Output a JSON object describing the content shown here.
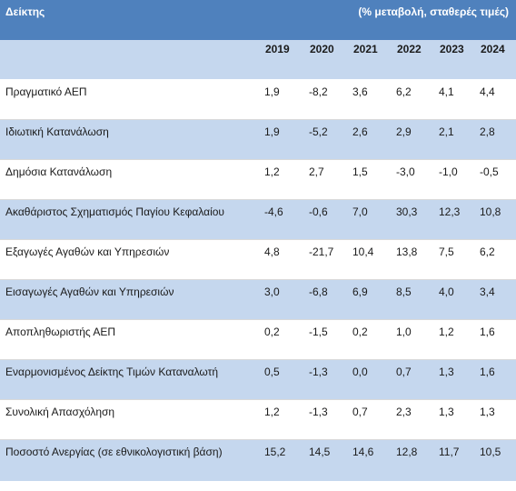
{
  "header": {
    "title": "Δείκτης",
    "unit": "(% μεταβολή, σταθερές τιμές)"
  },
  "years": [
    "2019",
    "2020",
    "2021",
    "2022",
    "2023",
    "2024"
  ],
  "rows": [
    {
      "label": "Πραγματικό ΑΕΠ",
      "values": [
        "1,9",
        "-8,2",
        "3,6",
        "6,2",
        "4,1",
        "4,4"
      ]
    },
    {
      "label": "Ιδιωτική Κατανάλωση",
      "values": [
        "1,9",
        "-5,2",
        "2,6",
        "2,9",
        "2,1",
        "2,8"
      ]
    },
    {
      "label": "Δημόσια Κατανάλωση",
      "values": [
        "1,2",
        "2,7",
        "1,5",
        "-3,0",
        "-1,0",
        "-0,5"
      ]
    },
    {
      "label": "Ακαθάριστος Σχηματισμός Παγίου Κεφαλαίου",
      "values": [
        "-4,6",
        "-0,6",
        "7,0",
        "30,3",
        "12,3",
        "10,8"
      ]
    },
    {
      "label": "Εξαγωγές Αγαθών και Υπηρεσιών",
      "values": [
        "4,8",
        "-21,7",
        "10,4",
        "13,8",
        "7,5",
        "6,2"
      ]
    },
    {
      "label": "Εισαγωγές Αγαθών και Υπηρεσιών",
      "values": [
        "3,0",
        "-6,8",
        "6,9",
        "8,5",
        "4,0",
        "3,4"
      ]
    },
    {
      "label": "Αποπληθωριστής ΑΕΠ",
      "values": [
        "0,2",
        "-1,5",
        "0,2",
        "1,0",
        "1,2",
        "1,6"
      ]
    },
    {
      "label": "Εναρμονισμένος Δείκτης Τιμών Καταναλωτή",
      "values": [
        "0,5",
        "-1,3",
        "0,0",
        "0,7",
        "1,3",
        "1,6"
      ]
    },
    {
      "label": "Συνολική Απασχόληση",
      "values": [
        "1,2",
        "-1,3",
        "0,7",
        "2,3",
        "1,3",
        "1,3"
      ]
    },
    {
      "label": "Ποσοστό Ανεργίας (σε εθνικολογιστική βάση)",
      "values": [
        "15,2",
        "14,5",
        "14,6",
        "12,8",
        "11,7",
        "10,5"
      ]
    }
  ]
}
